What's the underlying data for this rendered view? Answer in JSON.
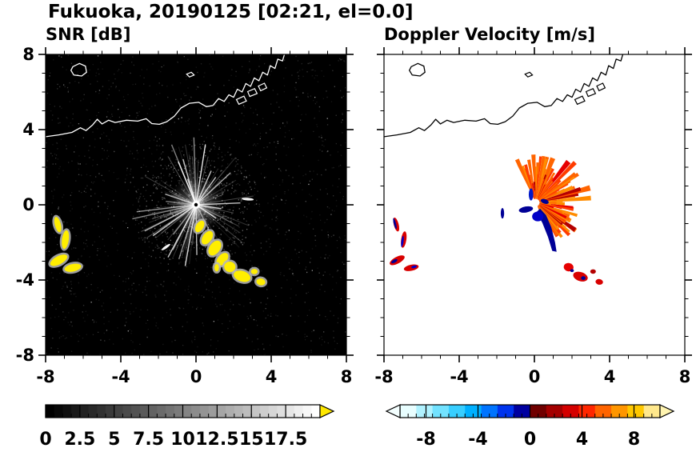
{
  "title": "Fukuoka, 20190125 [02:21, el=0.0]",
  "map": {
    "coastline": [
      [
        -8.0,
        3.62
      ],
      [
        -7.3,
        3.72
      ],
      [
        -6.6,
        3.85
      ],
      [
        -6.15,
        4.1
      ],
      [
        -5.85,
        3.95
      ],
      [
        -5.5,
        4.25
      ],
      [
        -5.25,
        4.55
      ],
      [
        -5.0,
        4.3
      ],
      [
        -4.65,
        4.5
      ],
      [
        -4.3,
        4.38
      ],
      [
        -3.7,
        4.5
      ],
      [
        -3.1,
        4.45
      ],
      [
        -2.65,
        4.58
      ],
      [
        -2.35,
        4.32
      ],
      [
        -1.95,
        4.28
      ],
      [
        -1.55,
        4.42
      ],
      [
        -1.15,
        4.72
      ],
      [
        -0.8,
        5.15
      ],
      [
        -0.35,
        5.4
      ],
      [
        0.15,
        5.45
      ],
      [
        0.55,
        5.22
      ],
      [
        0.9,
        5.28
      ],
      [
        1.2,
        5.65
      ],
      [
        1.5,
        5.5
      ],
      [
        1.75,
        5.85
      ],
      [
        2.0,
        5.72
      ],
      [
        2.2,
        6.15
      ],
      [
        2.45,
        6.0
      ],
      [
        2.65,
        6.45
      ],
      [
        2.9,
        6.3
      ],
      [
        3.1,
        6.75
      ],
      [
        3.35,
        6.6
      ],
      [
        3.55,
        7.05
      ],
      [
        3.8,
        6.9
      ],
      [
        3.95,
        7.4
      ],
      [
        4.2,
        7.25
      ],
      [
        4.35,
        7.75
      ],
      [
        4.6,
        7.65
      ],
      [
        4.72,
        8.05
      ]
    ],
    "island": [
      [
        -6.55,
        7.35
      ],
      [
        -6.2,
        7.52
      ],
      [
        -5.88,
        7.38
      ],
      [
        -5.82,
        7.05
      ],
      [
        -6.08,
        6.85
      ],
      [
        -6.5,
        6.9
      ],
      [
        -6.65,
        7.15
      ]
    ],
    "islet": [
      [
        -0.5,
        6.95
      ],
      [
        -0.25,
        7.05
      ],
      [
        -0.1,
        6.9
      ],
      [
        -0.35,
        6.8
      ]
    ],
    "piers": [
      [
        [
          2.15,
          5.6
        ],
        [
          2.55,
          5.78
        ],
        [
          2.68,
          5.52
        ],
        [
          2.28,
          5.35
        ]
      ],
      [
        [
          2.75,
          6.02
        ],
        [
          3.12,
          6.18
        ],
        [
          3.25,
          5.92
        ],
        [
          2.86,
          5.76
        ]
      ],
      [
        [
          3.32,
          6.32
        ],
        [
          3.64,
          6.47
        ],
        [
          3.76,
          6.22
        ],
        [
          3.44,
          6.07
        ]
      ]
    ]
  },
  "chart_data": [
    {
      "type": "heatmap",
      "variant": "radar-ppi",
      "title": "SNR [dB]",
      "xlim": [
        -8,
        8
      ],
      "ylim": [
        -8,
        8
      ],
      "xticks": [
        -8,
        -4,
        0,
        4,
        8
      ],
      "xtick_labels": [
        "-8",
        "-4",
        "0",
        "4",
        "8"
      ],
      "yticks": [
        8,
        4,
        0,
        -4,
        -8
      ],
      "ytick_labels": [
        "8",
        "4",
        "0",
        "-4",
        "-8"
      ],
      "background": "#000000",
      "coast_color": "#ffffff",
      "radar_center": [
        0,
        0
      ],
      "colorbar": {
        "min": 0,
        "max": 20,
        "tick_values": [
          0,
          2.5,
          5,
          7.5,
          10,
          12.5,
          15,
          17.5
        ],
        "tick_labels": [
          "0",
          "2.5",
          "5",
          "7.5",
          "10",
          "12.5",
          "15",
          "17.5"
        ],
        "colormap": "grayscale",
        "start_color": "#000000",
        "end_color": "#ffffff",
        "over_color": "#ffe800",
        "arrows": "right"
      },
      "beam_fan": {
        "count": 120,
        "bright_count": 24,
        "min_len": 0.7,
        "max_len": 3.3,
        "seed": 7
      },
      "speckle": {
        "count": 1500,
        "center_count": 600,
        "seed": 3
      },
      "strong_echo_color": "#ffee00",
      "strong_echoes": [
        [
          -7.35,
          -1.05,
          0.16,
          0.42,
          -15
        ],
        [
          -6.95,
          -1.85,
          0.18,
          0.5,
          8
        ],
        [
          -7.3,
          -2.95,
          0.5,
          0.22,
          -28
        ],
        [
          -6.55,
          -3.35,
          0.45,
          0.2,
          -12
        ],
        [
          0.2,
          -1.15,
          0.2,
          0.34,
          32
        ],
        [
          0.6,
          -1.75,
          0.24,
          0.4,
          35
        ],
        [
          1.0,
          -2.3,
          0.28,
          0.44,
          35
        ],
        [
          1.4,
          -2.9,
          0.24,
          0.4,
          40
        ],
        [
          1.8,
          -3.3,
          0.3,
          0.28,
          10
        ],
        [
          2.45,
          -3.8,
          0.46,
          0.28,
          18
        ],
        [
          3.1,
          -3.55,
          0.18,
          0.14,
          0
        ],
        [
          3.45,
          -4.1,
          0.24,
          0.18,
          10
        ],
        [
          1.1,
          -3.35,
          0.12,
          0.2,
          0
        ]
      ],
      "white_dashes": [
        [
          -1.6,
          -2.25,
          0.28,
          0.07,
          -35
        ],
        [
          2.75,
          0.3,
          0.32,
          0.07,
          4
        ]
      ]
    },
    {
      "type": "heatmap",
      "variant": "radar-ppi",
      "title": "Doppler Velocity [m/s]",
      "xlim": [
        -8,
        8
      ],
      "ylim": [
        -8,
        8
      ],
      "xticks": [
        -8,
        -4,
        0,
        4,
        8
      ],
      "xtick_labels": [
        "-8",
        "-4",
        "0",
        "4",
        "8"
      ],
      "yticks": [
        8,
        4,
        0,
        -4,
        -8
      ],
      "ytick_labels": [],
      "background": "#ffffff",
      "coast_color": "#000000",
      "radar_center": [
        0,
        0
      ],
      "colorbar": {
        "min": -10,
        "max": 10,
        "tick_values": [
          -8,
          -4,
          0,
          4,
          8
        ],
        "tick_labels": [
          "-8",
          "-4",
          "0",
          "4",
          "8"
        ],
        "colormap": "diverging blue-red",
        "colors": [
          "#e8feff",
          "#b0f2ff",
          "#72e2ff",
          "#38ceff",
          "#00b0ff",
          "#0074ff",
          "#0034ee",
          "#0000a0",
          "#700000",
          "#a40000",
          "#d40000",
          "#ff2600",
          "#ff6400",
          "#ff9600",
          "#ffc800",
          "#ffe88c"
        ],
        "under_color": "#f4ffff",
        "over_color": "#fff4b0",
        "arrows": "both"
      },
      "fan": {
        "center": [
          0.08,
          0.12
        ],
        "angle_start": -65,
        "angle_end": 116,
        "count": 130,
        "r_min": 0.25,
        "r_max": 2.6,
        "palette": [
          "#ff6400",
          "#ff8c00",
          "#ff3c00",
          "#e60000",
          "#b40000"
        ],
        "seed": 11
      },
      "blue_polygon": [
        [
          0.3,
          -0.2
        ],
        [
          0.62,
          -0.55
        ],
        [
          0.9,
          -1.2
        ],
        [
          1.1,
          -2.0
        ],
        [
          1.18,
          -2.5
        ],
        [
          0.95,
          -2.45
        ],
        [
          0.72,
          -1.7
        ],
        [
          0.42,
          -0.95
        ],
        [
          0.1,
          -0.4
        ]
      ],
      "blue_ellipses": [
        [
          -0.45,
          -0.25,
          0.38,
          0.16,
          -10,
          "#000096"
        ],
        [
          0.18,
          -0.62,
          0.3,
          0.26,
          0,
          "#0000c8"
        ],
        [
          -1.7,
          -0.45,
          0.09,
          0.28,
          0,
          "#000096"
        ],
        [
          0.55,
          0.18,
          0.22,
          0.12,
          20,
          "#000096"
        ],
        [
          -0.18,
          0.55,
          0.12,
          0.32,
          0,
          "#0018c8"
        ]
      ],
      "specks": [
        [
          -7.35,
          -1.05,
          0.13,
          0.38,
          -15,
          "#d80000"
        ],
        [
          -7.42,
          -1.0,
          0.06,
          0.3,
          -15,
          "#000096"
        ],
        [
          -6.95,
          -1.85,
          0.14,
          0.44,
          8,
          "#d80000"
        ],
        [
          -7.02,
          -1.95,
          0.06,
          0.3,
          8,
          "#0000c8"
        ],
        [
          -7.3,
          -2.95,
          0.44,
          0.18,
          -28,
          "#d80000"
        ],
        [
          -7.45,
          -3.0,
          0.18,
          0.08,
          -28,
          "#000096"
        ],
        [
          -6.55,
          -3.35,
          0.4,
          0.16,
          -12,
          "#d80000"
        ],
        [
          -6.4,
          -3.3,
          0.15,
          0.07,
          -12,
          "#0000c8"
        ],
        [
          1.82,
          -3.32,
          0.26,
          0.22,
          10,
          "#e60000"
        ],
        [
          2.0,
          -3.5,
          0.1,
          0.08,
          0,
          "#000096"
        ],
        [
          2.45,
          -3.82,
          0.4,
          0.24,
          18,
          "#d80000"
        ],
        [
          2.6,
          -3.9,
          0.12,
          0.1,
          0,
          "#000096"
        ],
        [
          3.12,
          -3.55,
          0.15,
          0.12,
          0,
          "#b40000"
        ],
        [
          3.45,
          -4.1,
          0.2,
          0.15,
          10,
          "#d80000"
        ]
      ]
    }
  ]
}
